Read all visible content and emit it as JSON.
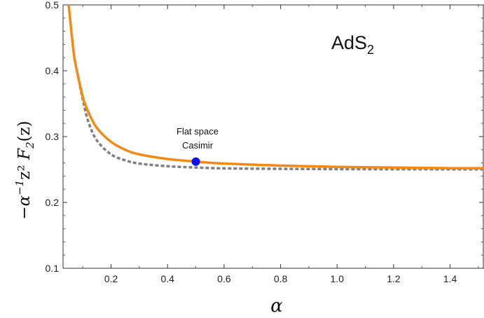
{
  "chart_data": {
    "type": "line",
    "title": "",
    "inset_label": {
      "main": "AdS",
      "sub": "2"
    },
    "xlabel": "α",
    "ylabel": {
      "prefix": "−α",
      "sup": "−1",
      "mid": "z² ",
      "f": "F",
      "sub": "2",
      "suffix": "(z)"
    },
    "xlim": [
      0.03,
      1.52
    ],
    "ylim": [
      0.1,
      0.5
    ],
    "xticks": [
      0.2,
      0.4,
      0.6,
      0.8,
      1.0,
      1.2,
      1.4
    ],
    "xtick_labels": [
      "0.2",
      "0.4",
      "0.6",
      "0.8",
      "1.0",
      "1.2",
      "1.4"
    ],
    "yticks": [
      0.1,
      0.2,
      0.3,
      0.4,
      0.5
    ],
    "ytick_labels": [
      "0.1",
      "0.2",
      "0.3",
      "0.4",
      "0.5"
    ],
    "grid": false,
    "series": [
      {
        "style": "solid",
        "color": "#f5890f",
        "x": [
          0.05,
          0.06,
          0.07,
          0.08,
          0.1,
          0.12,
          0.15,
          0.2,
          0.25,
          0.3,
          0.4,
          0.5,
          0.6,
          0.8,
          1.0,
          1.2,
          1.4,
          1.52
        ],
        "y": [
          0.5,
          0.457,
          0.42,
          0.398,
          0.36,
          0.337,
          0.313,
          0.292,
          0.28,
          0.273,
          0.266,
          0.262,
          0.259,
          0.256,
          0.254,
          0.253,
          0.252,
          0.252
        ]
      },
      {
        "style": "dashed",
        "color": "#7f7f7f",
        "x": [
          0.09,
          0.1,
          0.12,
          0.15,
          0.2,
          0.25,
          0.3,
          0.4,
          0.5,
          0.6,
          0.8,
          1.0,
          1.2,
          1.4,
          1.52
        ],
        "y": [
          0.377,
          0.356,
          0.322,
          0.294,
          0.273,
          0.264,
          0.259,
          0.255,
          0.253,
          0.2517,
          0.251,
          0.2506,
          0.2504,
          0.2503,
          0.2502
        ]
      }
    ],
    "marker": {
      "x": 0.5,
      "y": 0.262,
      "color": "#1010ee"
    },
    "annotation": [
      "Flat space",
      "Casimir"
    ]
  }
}
